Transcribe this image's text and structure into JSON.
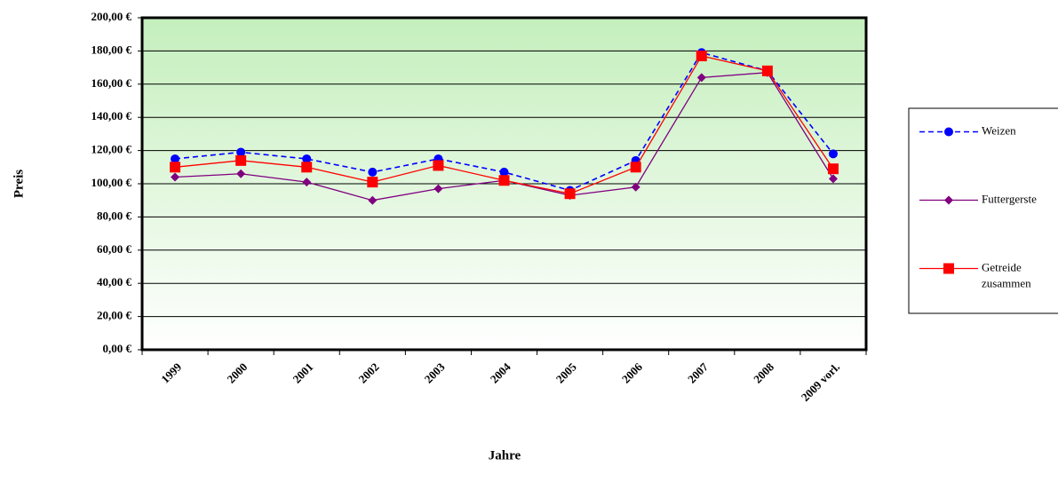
{
  "chart_data": {
    "type": "line",
    "x_label": "Jahre",
    "y_label": "Preis",
    "categories": [
      "1999",
      "2000",
      "2001",
      "2002",
      "2003",
      "2004",
      "2005",
      "2006",
      "2007",
      "2008",
      "2009 vorl."
    ],
    "series": [
      {
        "name": "Weizen",
        "color": "#0000ff",
        "marker": "circle",
        "dashed": true,
        "values": [
          115,
          119,
          115,
          107,
          115,
          107,
          96,
          114,
          179,
          168,
          118
        ]
      },
      {
        "name": "Futtergerste",
        "color": "#800080",
        "marker": "diamond",
        "dashed": false,
        "values": [
          104,
          106,
          101,
          90,
          97,
          102,
          93,
          98,
          164,
          167,
          103
        ]
      },
      {
        "name": "Getreide zusammen",
        "color": "#ff0000",
        "marker": "square",
        "dashed": false,
        "values": [
          110,
          114,
          110,
          101,
          111,
          102,
          94,
          110,
          177,
          168,
          109
        ]
      }
    ],
    "ylim": [
      0,
      200
    ],
    "yticks": [
      {
        "value": 0,
        "label": "0,00 €"
      },
      {
        "value": 20,
        "label": "20,00 €"
      },
      {
        "value": 40,
        "label": "40,00 €"
      },
      {
        "value": 60,
        "label": "60,00 €"
      },
      {
        "value": 80,
        "label": "80,00 €"
      },
      {
        "value": 100,
        "label": "100,00 €"
      },
      {
        "value": 120,
        "label": "120,00 €"
      },
      {
        "value": 140,
        "label": "140,00 €"
      },
      {
        "value": 160,
        "label": "160,00 €"
      },
      {
        "value": 180,
        "label": "180,00 €"
      },
      {
        "value": 200,
        "label": "200,00 €"
      }
    ],
    "grid": true,
    "legend": "right"
  }
}
